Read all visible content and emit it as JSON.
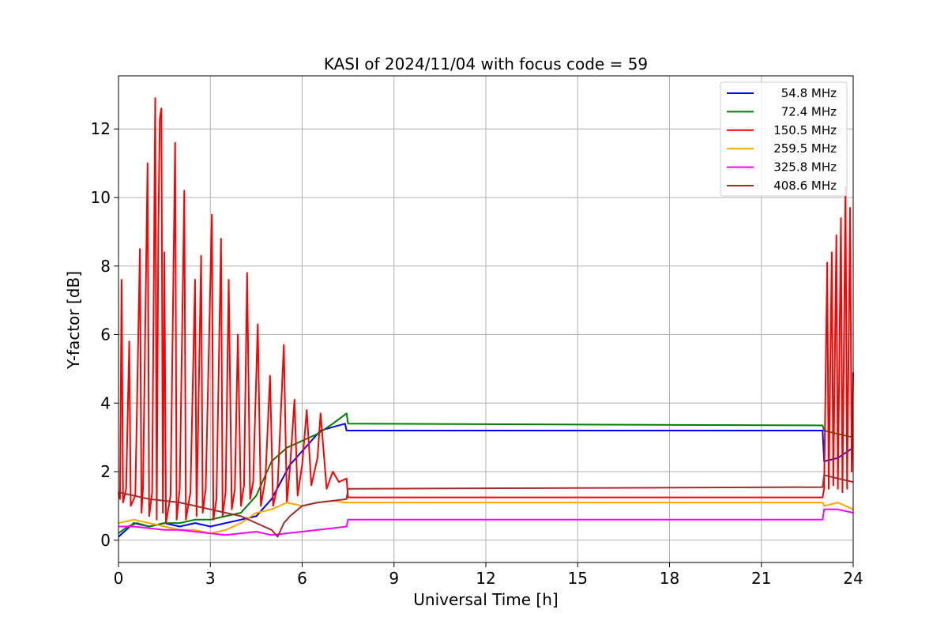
{
  "chart_data": {
    "type": "line",
    "title": "KASI of 2024/11/04 with focus code = 59",
    "xlabel": "Universal Time [h]",
    "ylabel": "Y-factor [dB]",
    "xlim": [
      0,
      24
    ],
    "ylim": [
      -0.65,
      13.55
    ],
    "xticks": [
      0,
      3,
      6,
      9,
      12,
      15,
      18,
      21,
      24
    ],
    "yticks": [
      0,
      2,
      4,
      6,
      8,
      10,
      12
    ],
    "grid": true,
    "legend_position": "top-right",
    "series": [
      {
        "name": " 54.8 MHz",
        "color": "#0000ff",
        "points": [
          [
            0,
            0.1
          ],
          [
            0.25,
            0.3
          ],
          [
            0.5,
            0.5
          ],
          [
            1.0,
            0.4
          ],
          [
            1.5,
            0.5
          ],
          [
            2.0,
            0.4
          ],
          [
            2.5,
            0.5
          ],
          [
            3.0,
            0.4
          ],
          [
            3.5,
            0.5
          ],
          [
            4.0,
            0.6
          ],
          [
            4.5,
            0.7
          ],
          [
            5.0,
            1.2
          ],
          [
            5.3,
            1.7
          ],
          [
            5.6,
            2.2
          ],
          [
            6.0,
            2.6
          ],
          [
            6.3,
            2.9
          ],
          [
            6.6,
            3.2
          ],
          [
            7.0,
            3.3
          ],
          [
            7.4,
            3.4
          ],
          [
            7.45,
            3.2
          ],
          [
            23.0,
            3.2
          ],
          [
            23.05,
            2.3
          ],
          [
            23.5,
            2.4
          ],
          [
            24.0,
            2.7
          ]
        ]
      },
      {
        "name": " 72.4 MHz",
        "color": "#008000",
        "points": [
          [
            0,
            0.2
          ],
          [
            0.3,
            0.4
          ],
          [
            0.6,
            0.5
          ],
          [
            1.0,
            0.4
          ],
          [
            1.5,
            0.5
          ],
          [
            2.0,
            0.5
          ],
          [
            2.5,
            0.6
          ],
          [
            3.0,
            0.6
          ],
          [
            3.5,
            0.7
          ],
          [
            4.0,
            0.8
          ],
          [
            4.5,
            1.3
          ],
          [
            5.0,
            2.3
          ],
          [
            5.5,
            2.7
          ],
          [
            6.0,
            2.9
          ],
          [
            6.5,
            3.1
          ],
          [
            7.0,
            3.4
          ],
          [
            7.45,
            3.7
          ],
          [
            7.5,
            3.4
          ],
          [
            23.0,
            3.35
          ],
          [
            23.05,
            3.2
          ],
          [
            23.5,
            3.1
          ],
          [
            24.0,
            3.0
          ]
        ]
      },
      {
        "name": " 150.5 MHz",
        "color": "#ff0000",
        "points": [
          [
            0,
            1.4
          ],
          [
            0.05,
            1.2
          ],
          [
            0.1,
            7.6
          ],
          [
            0.15,
            1.1
          ],
          [
            0.25,
            1.5
          ],
          [
            0.35,
            5.8
          ],
          [
            0.4,
            1.0
          ],
          [
            0.55,
            1.3
          ],
          [
            0.7,
            8.5
          ],
          [
            0.75,
            0.8
          ],
          [
            0.8,
            1.5
          ],
          [
            0.95,
            11.0
          ],
          [
            1.0,
            0.7
          ],
          [
            1.1,
            1.4
          ],
          [
            1.2,
            12.9
          ],
          [
            1.25,
            0.6
          ],
          [
            1.3,
            9.0
          ],
          [
            1.35,
            12.3
          ],
          [
            1.4,
            12.6
          ],
          [
            1.45,
            0.8
          ],
          [
            1.5,
            8.4
          ],
          [
            1.55,
            0.5
          ],
          [
            1.7,
            1.3
          ],
          [
            1.85,
            11.6
          ],
          [
            1.9,
            0.6
          ],
          [
            2.0,
            1.5
          ],
          [
            2.15,
            10.2
          ],
          [
            2.2,
            0.6
          ],
          [
            2.35,
            1.4
          ],
          [
            2.5,
            7.6
          ],
          [
            2.55,
            0.7
          ],
          [
            2.7,
            8.3
          ],
          [
            2.75,
            0.8
          ],
          [
            2.85,
            1.5
          ],
          [
            3.05,
            9.5
          ],
          [
            3.1,
            0.6
          ],
          [
            3.2,
            1.2
          ],
          [
            3.35,
            8.8
          ],
          [
            3.4,
            0.7
          ],
          [
            3.5,
            1.4
          ],
          [
            3.6,
            7.6
          ],
          [
            3.7,
            0.9
          ],
          [
            3.8,
            1.5
          ],
          [
            3.9,
            6.0
          ],
          [
            4.0,
            1.0
          ],
          [
            4.1,
            1.6
          ],
          [
            4.2,
            7.8
          ],
          [
            4.3,
            1.2
          ],
          [
            4.4,
            1.7
          ],
          [
            4.55,
            6.3
          ],
          [
            4.65,
            1.0
          ],
          [
            4.8,
            1.8
          ],
          [
            4.95,
            4.8
          ],
          [
            5.05,
            1.0
          ],
          [
            5.2,
            1.6
          ],
          [
            5.4,
            5.7
          ],
          [
            5.5,
            1.1
          ],
          [
            5.6,
            2.1
          ],
          [
            5.75,
            4.1
          ],
          [
            5.85,
            1.3
          ],
          [
            6.0,
            2.2
          ],
          [
            6.15,
            3.8
          ],
          [
            6.3,
            1.6
          ],
          [
            6.5,
            2.4
          ],
          [
            6.6,
            3.7
          ],
          [
            6.8,
            1.5
          ],
          [
            7.0,
            2.0
          ],
          [
            7.2,
            1.7
          ],
          [
            7.45,
            1.8
          ],
          [
            7.5,
            1.25
          ],
          [
            23.0,
            1.25
          ],
          [
            23.05,
            1.5
          ],
          [
            23.15,
            8.1
          ],
          [
            23.2,
            1.5
          ],
          [
            23.3,
            8.4
          ],
          [
            23.35,
            1.6
          ],
          [
            23.45,
            8.9
          ],
          [
            23.5,
            1.5
          ],
          [
            23.6,
            9.4
          ],
          [
            23.65,
            1.4
          ],
          [
            23.75,
            10.3
          ],
          [
            23.8,
            1.5
          ],
          [
            23.9,
            9.7
          ],
          [
            23.95,
            2.0
          ],
          [
            24.0,
            4.9
          ]
        ]
      },
      {
        "name": " 259.5 MHz",
        "color": "#ffa500",
        "points": [
          [
            0,
            0.5
          ],
          [
            0.5,
            0.6
          ],
          [
            1.0,
            0.5
          ],
          [
            1.5,
            0.4
          ],
          [
            2.0,
            0.3
          ],
          [
            2.5,
            0.3
          ],
          [
            3.0,
            0.2
          ],
          [
            3.5,
            0.3
          ],
          [
            4.0,
            0.5
          ],
          [
            4.5,
            0.8
          ],
          [
            5.0,
            0.9
          ],
          [
            5.5,
            1.1
          ],
          [
            6.0,
            1.0
          ],
          [
            6.5,
            1.1
          ],
          [
            7.0,
            1.15
          ],
          [
            7.45,
            1.1
          ],
          [
            23.0,
            1.1
          ],
          [
            23.05,
            1.0
          ],
          [
            23.5,
            1.1
          ],
          [
            24.0,
            0.9
          ]
        ]
      },
      {
        "name": " 325.8 MHz",
        "color": "#ff00ff",
        "points": [
          [
            0,
            0.4
          ],
          [
            0.5,
            0.4
          ],
          [
            1.0,
            0.35
          ],
          [
            1.5,
            0.3
          ],
          [
            2.0,
            0.3
          ],
          [
            2.5,
            0.25
          ],
          [
            3.0,
            0.2
          ],
          [
            3.5,
            0.15
          ],
          [
            4.0,
            0.2
          ],
          [
            4.5,
            0.25
          ],
          [
            5.0,
            0.15
          ],
          [
            5.5,
            0.2
          ],
          [
            6.0,
            0.25
          ],
          [
            6.5,
            0.3
          ],
          [
            7.0,
            0.35
          ],
          [
            7.45,
            0.4
          ],
          [
            7.5,
            0.6
          ],
          [
            23.0,
            0.6
          ],
          [
            23.05,
            0.9
          ],
          [
            23.5,
            0.9
          ],
          [
            24.0,
            0.8
          ]
        ]
      },
      {
        "name": " 408.6 MHz",
        "color": "#a52a2a",
        "points": [
          [
            0,
            1.4
          ],
          [
            0.5,
            1.3
          ],
          [
            1.0,
            1.2
          ],
          [
            1.5,
            1.15
          ],
          [
            2.0,
            1.1
          ],
          [
            2.5,
            1.0
          ],
          [
            3.0,
            0.9
          ],
          [
            3.5,
            0.8
          ],
          [
            4.0,
            0.7
          ],
          [
            4.5,
            0.5
          ],
          [
            5.0,
            0.3
          ],
          [
            5.2,
            0.1
          ],
          [
            5.4,
            0.5
          ],
          [
            5.6,
            0.7
          ],
          [
            6.0,
            1.0
          ],
          [
            6.5,
            1.1
          ],
          [
            7.0,
            1.15
          ],
          [
            7.45,
            1.2
          ],
          [
            7.5,
            1.5
          ],
          [
            23.0,
            1.55
          ],
          [
            23.05,
            1.9
          ],
          [
            23.5,
            1.8
          ],
          [
            24.0,
            1.7
          ]
        ]
      }
    ]
  }
}
